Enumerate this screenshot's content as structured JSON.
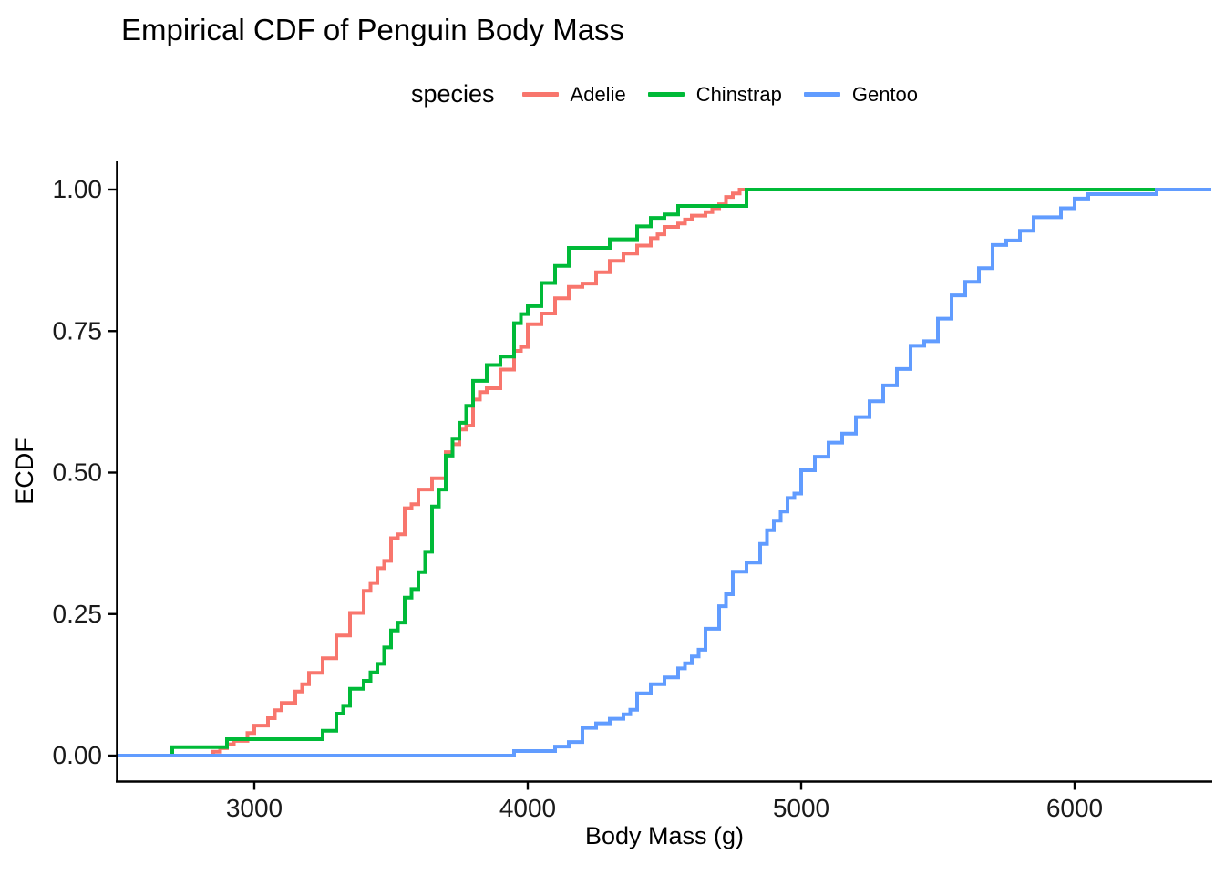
{
  "title": "Empirical CDF of Penguin Body Mass",
  "legend": {
    "title": "species",
    "entries": [
      "Adelie",
      "Chinstrap",
      "Gentoo"
    ]
  },
  "axes": {
    "x": {
      "label": "Body Mass (g)",
      "ticks": [
        3000,
        4000,
        5000,
        6000
      ],
      "tick_labels": [
        "3000",
        "4000",
        "5000",
        "6000"
      ]
    },
    "y": {
      "label": "ECDF",
      "ticks": [
        0,
        0.25,
        0.5,
        0.75,
        1.0
      ],
      "tick_labels": [
        "0.00",
        "0.25",
        "0.50",
        "0.75",
        "1.00"
      ]
    }
  },
  "chart_data": {
    "type": "line",
    "subtype": "step-ecdf",
    "title": "Empirical CDF of Penguin Body Mass",
    "xlabel": "Body Mass (g)",
    "ylabel": "ECDF",
    "xlim": [
      2500,
      6500
    ],
    "ylim": [
      0,
      1
    ],
    "grid": false,
    "legend_position": "top-center",
    "theme": "classic-no-gridlines",
    "axis_color": "#000000",
    "series": [
      {
        "name": "Adelie",
        "color": "#F8766D",
        "steps": [
          [
            2850,
            0.007
          ],
          [
            2875,
            0.013
          ],
          [
            2900,
            0.02
          ],
          [
            2925,
            0.026
          ],
          [
            2975,
            0.04
          ],
          [
            3000,
            0.053
          ],
          [
            3050,
            0.066
          ],
          [
            3075,
            0.08
          ],
          [
            3100,
            0.093
          ],
          [
            3150,
            0.113
          ],
          [
            3175,
            0.126
          ],
          [
            3200,
            0.146
          ],
          [
            3250,
            0.172
          ],
          [
            3300,
            0.212
          ],
          [
            3350,
            0.252
          ],
          [
            3400,
            0.291
          ],
          [
            3425,
            0.305
          ],
          [
            3450,
            0.331
          ],
          [
            3475,
            0.344
          ],
          [
            3500,
            0.384
          ],
          [
            3525,
            0.391
          ],
          [
            3550,
            0.437
          ],
          [
            3575,
            0.444
          ],
          [
            3600,
            0.47
          ],
          [
            3650,
            0.49
          ],
          [
            3700,
            0.536
          ],
          [
            3725,
            0.55
          ],
          [
            3750,
            0.576
          ],
          [
            3775,
            0.583
          ],
          [
            3800,
            0.629
          ],
          [
            3825,
            0.642
          ],
          [
            3850,
            0.649
          ],
          [
            3900,
            0.682
          ],
          [
            3950,
            0.715
          ],
          [
            3975,
            0.722
          ],
          [
            4000,
            0.762
          ],
          [
            4050,
            0.781
          ],
          [
            4100,
            0.808
          ],
          [
            4150,
            0.828
          ],
          [
            4200,
            0.834
          ],
          [
            4250,
            0.854
          ],
          [
            4300,
            0.874
          ],
          [
            4350,
            0.887
          ],
          [
            4400,
            0.901
          ],
          [
            4450,
            0.914
          ],
          [
            4475,
            0.921
          ],
          [
            4500,
            0.934
          ],
          [
            4550,
            0.94
          ],
          [
            4575,
            0.947
          ],
          [
            4600,
            0.954
          ],
          [
            4650,
            0.96
          ],
          [
            4675,
            0.967
          ],
          [
            4700,
            0.974
          ],
          [
            4725,
            0.987
          ],
          [
            4750,
            0.993
          ],
          [
            4775,
            1.0
          ]
        ]
      },
      {
        "name": "Chinstrap",
        "color": "#00BA38",
        "steps": [
          [
            2700,
            0.015
          ],
          [
            2900,
            0.029
          ],
          [
            3250,
            0.044
          ],
          [
            3300,
            0.074
          ],
          [
            3325,
            0.088
          ],
          [
            3350,
            0.118
          ],
          [
            3400,
            0.132
          ],
          [
            3425,
            0.147
          ],
          [
            3450,
            0.162
          ],
          [
            3475,
            0.191
          ],
          [
            3500,
            0.221
          ],
          [
            3525,
            0.235
          ],
          [
            3550,
            0.279
          ],
          [
            3575,
            0.294
          ],
          [
            3600,
            0.324
          ],
          [
            3625,
            0.36
          ],
          [
            3650,
            0.44
          ],
          [
            3675,
            0.47
          ],
          [
            3700,
            0.53
          ],
          [
            3725,
            0.56
          ],
          [
            3750,
            0.588
          ],
          [
            3775,
            0.618
          ],
          [
            3800,
            0.662
          ],
          [
            3850,
            0.69
          ],
          [
            3900,
            0.705
          ],
          [
            3950,
            0.764
          ],
          [
            3975,
            0.78
          ],
          [
            4000,
            0.794
          ],
          [
            4050,
            0.835
          ],
          [
            4100,
            0.865
          ],
          [
            4150,
            0.897
          ],
          [
            4300,
            0.912
          ],
          [
            4400,
            0.935
          ],
          [
            4450,
            0.95
          ],
          [
            4500,
            0.956
          ],
          [
            4550,
            0.971
          ],
          [
            4800,
            1.0
          ]
        ]
      },
      {
        "name": "Gentoo",
        "color": "#619CFF",
        "steps": [
          [
            3950,
            0.008
          ],
          [
            4100,
            0.016
          ],
          [
            4150,
            0.024
          ],
          [
            4200,
            0.049
          ],
          [
            4250,
            0.057
          ],
          [
            4300,
            0.065
          ],
          [
            4350,
            0.073
          ],
          [
            4375,
            0.081
          ],
          [
            4400,
            0.11
          ],
          [
            4450,
            0.126
          ],
          [
            4500,
            0.138
          ],
          [
            4550,
            0.154
          ],
          [
            4575,
            0.163
          ],
          [
            4600,
            0.175
          ],
          [
            4625,
            0.187
          ],
          [
            4650,
            0.224
          ],
          [
            4700,
            0.264
          ],
          [
            4725,
            0.285
          ],
          [
            4750,
            0.325
          ],
          [
            4800,
            0.341
          ],
          [
            4850,
            0.374
          ],
          [
            4875,
            0.398
          ],
          [
            4900,
            0.415
          ],
          [
            4925,
            0.431
          ],
          [
            4950,
            0.455
          ],
          [
            4975,
            0.463
          ],
          [
            5000,
            0.504
          ],
          [
            5050,
            0.528
          ],
          [
            5100,
            0.553
          ],
          [
            5150,
            0.569
          ],
          [
            5200,
            0.598
          ],
          [
            5250,
            0.626
          ],
          [
            5300,
            0.654
          ],
          [
            5350,
            0.683
          ],
          [
            5400,
            0.724
          ],
          [
            5450,
            0.732
          ],
          [
            5500,
            0.772
          ],
          [
            5550,
            0.813
          ],
          [
            5600,
            0.837
          ],
          [
            5650,
            0.861
          ],
          [
            5700,
            0.902
          ],
          [
            5750,
            0.91
          ],
          [
            5800,
            0.927
          ],
          [
            5850,
            0.951
          ],
          [
            5950,
            0.967
          ],
          [
            6000,
            0.984
          ],
          [
            6050,
            0.992
          ],
          [
            6300,
            1.0
          ]
        ]
      }
    ]
  }
}
